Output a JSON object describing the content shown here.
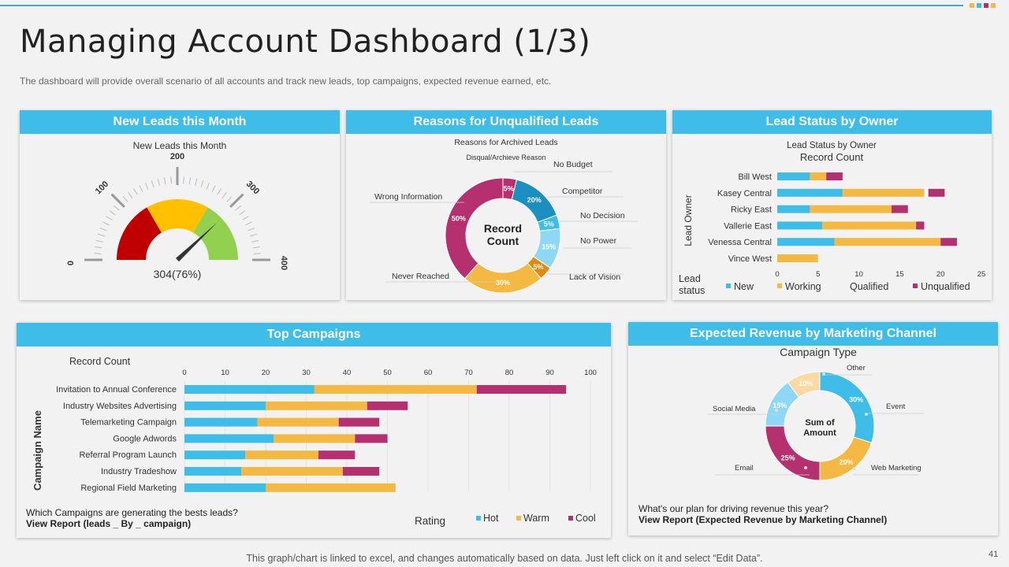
{
  "page": {
    "title": "Managing Account Dashboard (1/3)",
    "subtitle": "The dashboard  will provide  overall  scenario of all accounts and track new leads, top campaigns, expected revenue  earned, etc.",
    "footer": "This graph/chart is linked to excel, and changes automatically based on data. Just left click on it and select “Edit Data”.",
    "page_number": "41",
    "accent_colors": [
      "#f4b942",
      "#3dbde7",
      "#b5306f",
      "#f4b942"
    ]
  },
  "panels": {
    "new_leads": {
      "header": "New Leads this Month"
    },
    "unqualified": {
      "header": "Reasons for Unqualified Leads"
    },
    "lead_status": {
      "header": "Lead Status by Owner"
    },
    "campaigns": {
      "header": "Top Campaigns",
      "question": "Which Campaigns are generating the bests leads?",
      "link": "View Report (leads _ By _ campaign)"
    },
    "revenue": {
      "header": "Expected Revenue by Marketing Channel",
      "question": "What's our plan for driving revenue this year?",
      "link": "View Report (Expected Revenue  by Marketing Channel)"
    }
  },
  "chart_data": [
    {
      "id": "gauge",
      "type": "gauge",
      "title": "New Leads this Month",
      "min": 0,
      "max": 400,
      "major_ticks": [
        0,
        100,
        200,
        300,
        400
      ],
      "bands": [
        {
          "from": 0,
          "to": 133,
          "color": "#c00000"
        },
        {
          "from": 133,
          "to": 267,
          "color": "#ffc000"
        },
        {
          "from": 267,
          "to": 400,
          "color": "#92d050"
        }
      ],
      "value": 304,
      "value_label": "304(76%)"
    },
    {
      "id": "reasons",
      "type": "pie",
      "title": "Reasons for Archived Leads",
      "subtitle": "Disqual/Archieve Reason",
      "center_label": [
        "Record",
        "Count"
      ],
      "slices": [
        {
          "label": "No Budget",
          "value": 5,
          "text": "5%",
          "color": "#b5306f"
        },
        {
          "label": "Competitor",
          "value": 20,
          "text": "20%",
          "color": "#1a8fc0"
        },
        {
          "label": "No Decision",
          "value": 5,
          "text": "5%",
          "color": "#3dbde7"
        },
        {
          "label": "No Power",
          "value": 15,
          "text": "15%",
          "color": "#8fd8f5"
        },
        {
          "label": "Lack of Vision",
          "value": 5,
          "text": "5%",
          "color": "#e08a10"
        },
        {
          "label": "Never Reached",
          "value": 30,
          "text": "30%",
          "color": "#f4b942"
        },
        {
          "label": "Wrong Information",
          "value": 50,
          "text": "50%",
          "color": "#b5306f"
        }
      ]
    },
    {
      "id": "owner",
      "type": "bar",
      "title": "Lead Status by Owner",
      "subtitle": "Record Count",
      "ylabel": "Lead Owner",
      "xlim": [
        0,
        25
      ],
      "xticks": [
        0,
        5,
        10,
        15,
        20,
        25
      ],
      "categories": [
        "Bill West",
        "Kasey Central",
        "Ricky East",
        "Vallerie East",
        "Venessa Central",
        "Vince West"
      ],
      "series": [
        {
          "name": "New",
          "color": "#3dbde7",
          "values": [
            4,
            8,
            4,
            5.5,
            7,
            0
          ]
        },
        {
          "name": "Working",
          "color": "#f4b942",
          "values": [
            2,
            10,
            10,
            11.5,
            13,
            5
          ]
        },
        {
          "name": "Qualified",
          "color": "#ffffff",
          "values": [
            0,
            0.5,
            0,
            0,
            0,
            0
          ]
        },
        {
          "name": "Unqualified",
          "color": "#b5306f",
          "values": [
            2,
            2,
            2,
            1,
            2,
            0
          ]
        }
      ],
      "legend_title": "Lead status"
    },
    {
      "id": "campaigns",
      "type": "bar",
      "xlabel": "Record Count",
      "ylabel": "Campaign Name",
      "xlim": [
        0,
        100
      ],
      "xticks": [
        0,
        10,
        20,
        30,
        40,
        50,
        60,
        70,
        80,
        90,
        100
      ],
      "categories": [
        "Invitation to Annual Conference",
        "Industry Websites Advertising",
        "Telemarketing Campaign",
        "Google Adwords",
        "Referral Program Launch",
        "Industry Tradeshow",
        "Regional Field Marketing"
      ],
      "series": [
        {
          "name": "Hot",
          "color": "#3dbde7",
          "values": [
            32,
            20,
            18,
            22,
            15,
            14,
            20
          ]
        },
        {
          "name": "Warm",
          "color": "#f4b942",
          "values": [
            40,
            25,
            20,
            20,
            18,
            25,
            32
          ]
        },
        {
          "name": "Cool",
          "color": "#b5306f",
          "values": [
            22,
            10,
            10,
            8,
            9,
            9,
            0
          ]
        }
      ],
      "legend_title": "Rating"
    },
    {
      "id": "revenue",
      "type": "pie",
      "title": "Campaign Type",
      "center_label": [
        "Sum of",
        "Amount"
      ],
      "slices": [
        {
          "label": "Event",
          "value": 30,
          "text": "30%",
          "color": "#3dbde7"
        },
        {
          "label": "Web Marketing",
          "value": 20,
          "text": "20%",
          "color": "#f4b942"
        },
        {
          "label": "Email",
          "value": 25,
          "text": "25%",
          "color": "#b5306f"
        },
        {
          "label": "Social Media",
          "value": 15,
          "text": "15%",
          "color": "#8fd8f5"
        },
        {
          "label": "Other",
          "value": 10,
          "text": "10%",
          "color": "#fbd9a0"
        }
      ]
    }
  ]
}
